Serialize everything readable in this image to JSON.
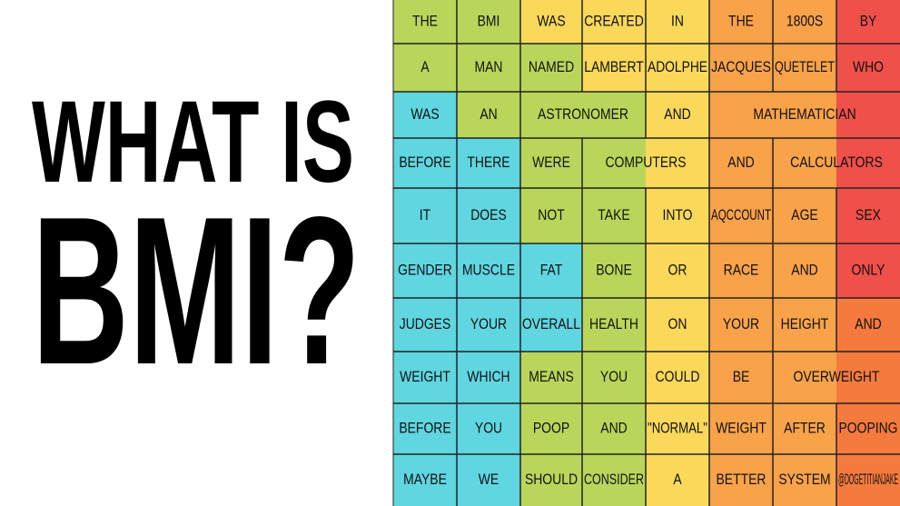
{
  "title": {
    "line1": "WHAT IS",
    "line2": "BMI?"
  },
  "grid": {
    "rows": [
      [
        "THE",
        "BMI",
        "WAS",
        "CREATED",
        "IN",
        "THE",
        "1800S",
        "BY"
      ],
      [
        "A",
        "MAN",
        "NAMED",
        "LAMBERT",
        "ADOLPHE",
        "JACQUES",
        "QUETELET",
        "WHO"
      ],
      [
        "WAS",
        "AN",
        "ASTRONOMER",
        "AND",
        "MATHEMATICIAN"
      ],
      [
        "BEFORE",
        "THERE",
        "WERE",
        "COMPUTERS",
        "AND",
        "CALCULATORS"
      ],
      [
        "IT",
        "DOES",
        "NOT",
        "TAKE",
        "INTO",
        "AQCCOUNT",
        "AGE",
        "SEX"
      ],
      [
        "GENDER",
        "MUSCLE",
        "FAT",
        "BONE",
        "OR",
        "RACE",
        "AND",
        "ONLY"
      ],
      [
        "JUDGES",
        "YOUR",
        "OVERALL",
        "HEALTH",
        "ON",
        "YOUR",
        "HEIGHT",
        "AND"
      ],
      [
        "WEIGHT",
        "WHICH",
        "MEANS",
        "YOU",
        "COULD",
        "BE",
        "OVERWEIGHT"
      ],
      [
        "BEFORE",
        "YOU",
        "POOP",
        "AND",
        "\"NORMAL\"",
        "WEIGHT",
        "AFTER",
        "POOPING"
      ],
      [
        "MAYBE",
        "WE",
        "SHOULD",
        "CONSIDER",
        "A",
        "BETTER",
        "SYSTEM",
        "@DOGETITIANJAKE"
      ]
    ]
  }
}
